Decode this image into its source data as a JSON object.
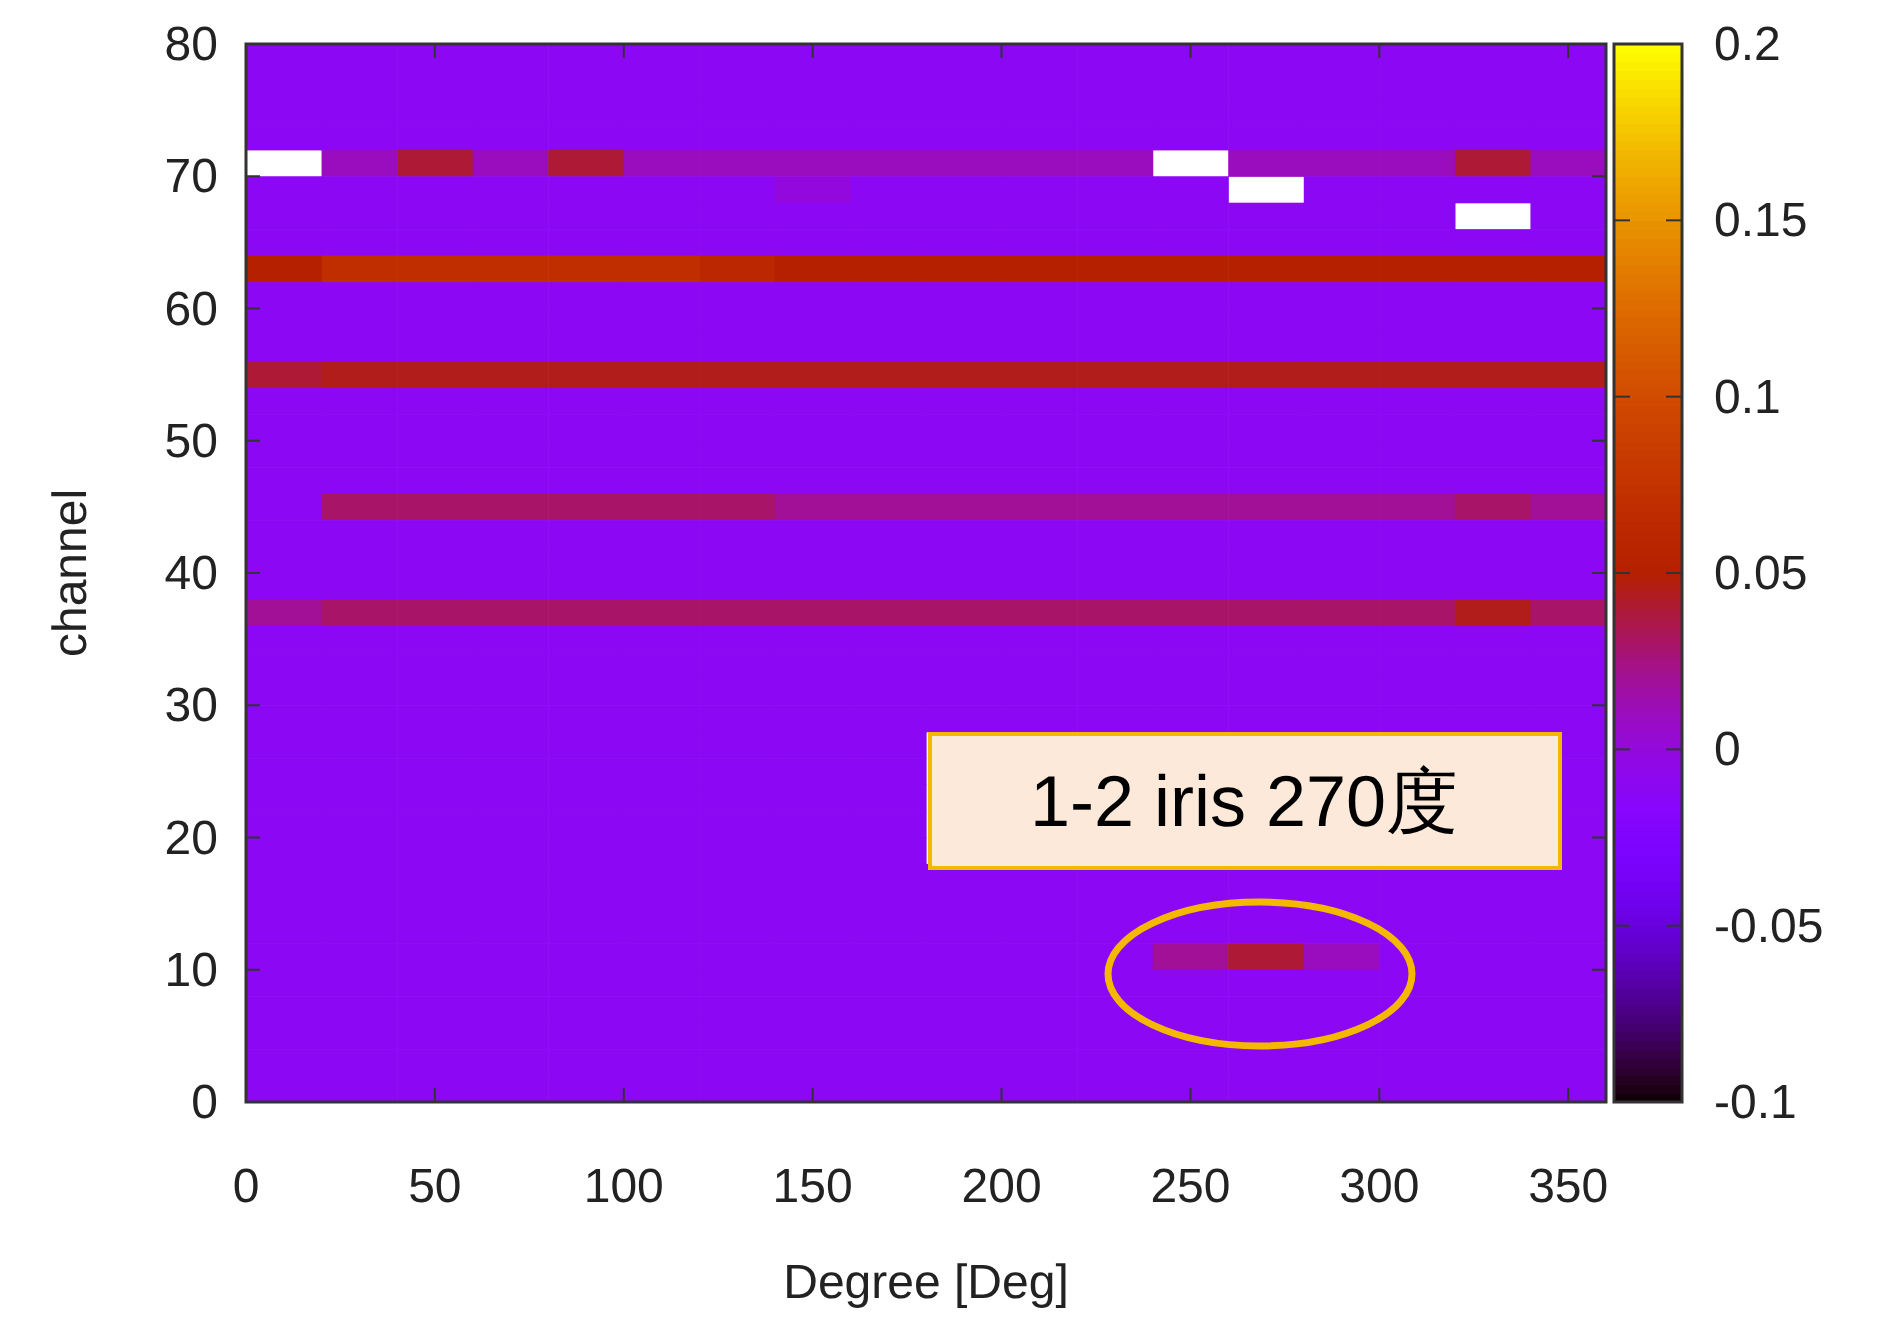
{
  "chart_data": {
    "type": "heatmap",
    "xlabel": "Degree [Deg]",
    "ylabel": "channel",
    "x": [
      10,
      30,
      50,
      70,
      90,
      110,
      130,
      150,
      170,
      190,
      210,
      230,
      250,
      270,
      290,
      310,
      330,
      350
    ],
    "y": [
      79,
      77,
      75,
      73,
      71,
      69,
      67,
      65,
      63,
      61,
      59,
      57,
      55,
      53,
      51,
      49,
      47,
      45,
      43,
      41,
      39,
      37,
      35,
      33,
      31,
      29,
      27,
      25,
      23,
      21,
      19,
      17,
      15,
      13,
      11,
      9,
      7,
      5,
      3,
      1
    ],
    "xlim": [
      0,
      360
    ],
    "xticks": [
      0,
      50,
      100,
      150,
      200,
      250,
      300,
      350
    ],
    "ylim": [
      0,
      80
    ],
    "yticks": [
      0,
      10,
      20,
      30,
      40,
      50,
      60,
      70,
      80
    ],
    "clim": [
      -0.1,
      0.2
    ],
    "cticks": [
      -0.1,
      -0.05,
      0,
      0.05,
      0.1,
      0.15,
      0.2
    ],
    "cells": [
      [
        -0.01,
        -0.01,
        -0.01,
        -0.01,
        -0.01,
        -0.01,
        -0.01,
        -0.01,
        -0.01,
        -0.01,
        -0.01,
        -0.01,
        -0.01,
        -0.01,
        -0.01,
        -0.01,
        -0.01,
        -0.01
      ],
      [
        -0.01,
        -0.01,
        -0.01,
        -0.01,
        -0.01,
        -0.01,
        -0.01,
        -0.01,
        -0.01,
        -0.01,
        -0.01,
        -0.01,
        -0.01,
        -0.01,
        -0.01,
        -0.01,
        -0.01,
        -0.01
      ],
      [
        -0.01,
        -0.01,
        -0.01,
        -0.01,
        -0.01,
        -0.01,
        -0.01,
        -0.01,
        -0.01,
        -0.01,
        -0.01,
        -0.01,
        -0.01,
        -0.01,
        -0.01,
        -0.01,
        -0.01,
        -0.01
      ],
      [
        -0.01,
        -0.01,
        -0.01,
        -0.01,
        -0.01,
        -0.01,
        -0.01,
        -0.01,
        -0.01,
        -0.01,
        -0.01,
        -0.01,
        -0.01,
        -0.01,
        -0.01,
        -0.01,
        -0.01,
        -0.01
      ],
      [
        null,
        0.01,
        0.04,
        0.01,
        0.04,
        0.01,
        0.01,
        0.01,
        0.01,
        0.01,
        0.01,
        0.01,
        null,
        0.01,
        0.01,
        0.01,
        0.04,
        0.01
      ],
      [
        -0.01,
        -0.01,
        -0.01,
        -0.01,
        -0.01,
        -0.01,
        -0.01,
        0.0,
        -0.01,
        -0.01,
        -0.01,
        -0.01,
        -0.01,
        null,
        -0.01,
        -0.01,
        -0.01,
        -0.01
      ],
      [
        -0.01,
        -0.01,
        -0.01,
        -0.01,
        -0.01,
        -0.01,
        -0.01,
        -0.01,
        -0.01,
        -0.01,
        -0.01,
        -0.01,
        -0.01,
        -0.01,
        -0.01,
        -0.01,
        null,
        -0.01
      ],
      [
        -0.01,
        -0.01,
        -0.01,
        -0.01,
        -0.01,
        -0.01,
        -0.01,
        -0.01,
        -0.01,
        -0.01,
        -0.01,
        -0.01,
        -0.01,
        -0.01,
        -0.01,
        -0.01,
        -0.01,
        -0.01
      ],
      [
        0.05,
        0.07,
        0.07,
        0.07,
        0.07,
        0.07,
        0.06,
        0.05,
        0.05,
        0.05,
        0.05,
        0.05,
        0.05,
        0.05,
        0.05,
        0.05,
        0.05,
        0.05
      ],
      [
        -0.01,
        -0.01,
        -0.01,
        -0.01,
        -0.01,
        -0.01,
        -0.01,
        -0.01,
        -0.01,
        -0.01,
        -0.01,
        -0.01,
        -0.01,
        -0.01,
        -0.01,
        -0.01,
        -0.01,
        -0.01
      ],
      [
        -0.01,
        -0.01,
        -0.01,
        -0.01,
        -0.01,
        -0.01,
        -0.01,
        -0.01,
        -0.01,
        -0.01,
        -0.01,
        -0.01,
        -0.01,
        -0.01,
        -0.01,
        -0.01,
        -0.01,
        -0.01
      ],
      [
        -0.01,
        -0.01,
        -0.01,
        -0.01,
        -0.01,
        -0.01,
        -0.01,
        -0.01,
        -0.01,
        -0.01,
        -0.01,
        -0.01,
        -0.01,
        -0.01,
        -0.01,
        -0.01,
        -0.01,
        -0.01
      ],
      [
        0.04,
        0.045,
        0.045,
        0.045,
        0.045,
        0.045,
        0.045,
        0.045,
        0.045,
        0.045,
        0.045,
        0.045,
        0.045,
        0.045,
        0.045,
        0.045,
        0.045,
        0.045
      ],
      [
        -0.01,
        -0.01,
        -0.01,
        -0.01,
        -0.01,
        -0.01,
        -0.01,
        -0.01,
        -0.01,
        -0.01,
        -0.01,
        -0.01,
        -0.01,
        -0.01,
        -0.01,
        -0.01,
        -0.01,
        -0.01
      ],
      [
        -0.01,
        -0.01,
        -0.01,
        -0.01,
        -0.01,
        -0.01,
        -0.01,
        -0.01,
        -0.01,
        -0.01,
        -0.01,
        -0.01,
        -0.01,
        -0.01,
        -0.01,
        -0.01,
        -0.01,
        -0.01
      ],
      [
        -0.01,
        -0.01,
        -0.01,
        -0.01,
        -0.01,
        -0.01,
        -0.01,
        -0.01,
        -0.01,
        -0.01,
        -0.01,
        -0.01,
        -0.01,
        -0.01,
        -0.01,
        -0.01,
        -0.01,
        -0.01
      ],
      [
        -0.01,
        -0.01,
        -0.01,
        -0.01,
        -0.01,
        -0.01,
        -0.01,
        -0.01,
        -0.01,
        -0.01,
        -0.01,
        -0.01,
        -0.01,
        -0.01,
        -0.01,
        -0.01,
        -0.01,
        -0.01
      ],
      [
        -0.01,
        0.03,
        0.03,
        0.03,
        0.03,
        0.03,
        0.03,
        0.02,
        0.02,
        0.02,
        0.02,
        0.02,
        0.02,
        0.02,
        0.02,
        0.02,
        0.03,
        0.02
      ],
      [
        -0.01,
        -0.01,
        -0.01,
        -0.01,
        -0.01,
        -0.01,
        -0.01,
        -0.01,
        -0.01,
        -0.01,
        -0.01,
        -0.01,
        -0.01,
        -0.01,
        -0.01,
        -0.01,
        -0.01,
        -0.01
      ],
      [
        -0.01,
        -0.01,
        -0.01,
        -0.01,
        -0.01,
        -0.01,
        -0.01,
        -0.01,
        -0.01,
        -0.01,
        -0.01,
        -0.01,
        -0.01,
        -0.01,
        -0.01,
        -0.01,
        -0.01,
        -0.01
      ],
      [
        -0.01,
        -0.01,
        -0.01,
        -0.01,
        -0.01,
        -0.01,
        -0.01,
        -0.01,
        -0.01,
        -0.01,
        -0.01,
        -0.01,
        -0.01,
        -0.01,
        -0.01,
        -0.01,
        -0.01,
        -0.01
      ],
      [
        0.02,
        0.03,
        0.03,
        0.03,
        0.03,
        0.03,
        0.03,
        0.03,
        0.03,
        0.03,
        0.03,
        0.03,
        0.03,
        0.03,
        0.03,
        0.03,
        0.045,
        0.03
      ],
      [
        -0.01,
        -0.01,
        -0.01,
        -0.01,
        -0.01,
        -0.01,
        -0.01,
        -0.01,
        -0.01,
        -0.01,
        -0.01,
        -0.01,
        -0.01,
        -0.01,
        -0.01,
        -0.01,
        -0.01,
        -0.01
      ],
      [
        -0.01,
        -0.01,
        -0.01,
        -0.01,
        -0.01,
        -0.01,
        -0.01,
        -0.01,
        -0.01,
        -0.01,
        -0.01,
        -0.01,
        -0.01,
        -0.01,
        -0.01,
        -0.01,
        -0.01,
        -0.01
      ],
      [
        -0.01,
        -0.01,
        -0.01,
        -0.01,
        -0.01,
        -0.01,
        -0.01,
        -0.01,
        -0.01,
        -0.01,
        -0.01,
        -0.01,
        -0.01,
        -0.01,
        -0.01,
        -0.01,
        -0.01,
        -0.01
      ],
      [
        -0.01,
        -0.01,
        -0.01,
        -0.01,
        -0.01,
        -0.01,
        -0.01,
        -0.01,
        -0.01,
        -0.01,
        -0.01,
        -0.01,
        -0.01,
        -0.01,
        -0.01,
        -0.01,
        -0.01,
        -0.01
      ],
      [
        -0.01,
        -0.01,
        -0.01,
        -0.01,
        -0.01,
        -0.01,
        -0.01,
        -0.01,
        -0.01,
        null,
        null,
        null,
        null,
        null,
        null,
        null,
        null,
        -0.01
      ],
      [
        -0.01,
        -0.01,
        -0.01,
        -0.01,
        -0.01,
        -0.01,
        -0.01,
        -0.01,
        -0.01,
        null,
        null,
        null,
        null,
        null,
        null,
        null,
        null,
        -0.01
      ],
      [
        -0.01,
        -0.01,
        -0.01,
        -0.01,
        -0.01,
        -0.01,
        -0.01,
        -0.01,
        -0.01,
        null,
        null,
        null,
        null,
        null,
        null,
        null,
        null,
        -0.01
      ],
      [
        -0.01,
        -0.01,
        -0.01,
        -0.01,
        -0.01,
        -0.01,
        -0.01,
        -0.01,
        -0.01,
        null,
        null,
        null,
        null,
        null,
        null,
        null,
        null,
        -0.01
      ],
      [
        -0.01,
        -0.01,
        -0.01,
        -0.01,
        -0.01,
        -0.01,
        -0.01,
        -0.01,
        -0.01,
        null,
        null,
        null,
        null,
        null,
        null,
        null,
        null,
        -0.01
      ],
      [
        -0.01,
        -0.01,
        -0.01,
        -0.01,
        -0.01,
        -0.01,
        -0.01,
        -0.01,
        -0.01,
        -0.01,
        -0.01,
        -0.01,
        -0.01,
        -0.01,
        -0.01,
        -0.01,
        -0.01,
        -0.01
      ],
      [
        -0.01,
        -0.01,
        -0.01,
        -0.01,
        -0.01,
        -0.01,
        -0.01,
        -0.01,
        -0.01,
        -0.01,
        -0.01,
        -0.01,
        -0.01,
        -0.01,
        -0.01,
        -0.01,
        -0.01,
        -0.01
      ],
      [
        -0.01,
        -0.01,
        -0.01,
        -0.01,
        -0.01,
        -0.01,
        -0.01,
        -0.01,
        -0.01,
        -0.01,
        -0.01,
        -0.01,
        -0.01,
        -0.01,
        -0.01,
        -0.01,
        -0.01,
        -0.01
      ],
      [
        -0.01,
        -0.01,
        -0.01,
        -0.01,
        -0.01,
        -0.01,
        -0.01,
        -0.01,
        -0.01,
        -0.01,
        -0.01,
        -0.01,
        0.02,
        0.04,
        0.01,
        -0.01,
        -0.01,
        -0.01
      ],
      [
        -0.01,
        -0.01,
        -0.01,
        -0.01,
        -0.01,
        -0.01,
        -0.01,
        -0.01,
        -0.01,
        -0.01,
        -0.01,
        -0.01,
        -0.01,
        -0.01,
        -0.01,
        -0.01,
        -0.01,
        -0.01
      ],
      [
        -0.01,
        -0.01,
        -0.01,
        -0.01,
        -0.01,
        -0.01,
        -0.01,
        -0.01,
        -0.01,
        -0.01,
        -0.01,
        -0.01,
        -0.01,
        -0.01,
        -0.01,
        -0.01,
        -0.01,
        -0.01
      ],
      [
        -0.01,
        -0.01,
        -0.01,
        -0.01,
        -0.01,
        -0.01,
        -0.01,
        -0.01,
        -0.01,
        -0.01,
        -0.01,
        -0.01,
        -0.01,
        -0.01,
        -0.01,
        -0.01,
        -0.01,
        -0.01
      ],
      [
        -0.01,
        -0.01,
        -0.01,
        -0.01,
        -0.01,
        -0.01,
        -0.01,
        -0.01,
        -0.01,
        -0.01,
        -0.01,
        -0.01,
        -0.01,
        -0.01,
        -0.01,
        -0.01,
        -0.01,
        -0.01
      ],
      [
        -0.01,
        -0.01,
        -0.01,
        -0.01,
        -0.01,
        -0.01,
        -0.01,
        -0.01,
        -0.01,
        -0.01,
        -0.01,
        -0.01,
        -0.01,
        -0.01,
        -0.01,
        -0.01,
        -0.01,
        -0.01
      ]
    ],
    "annotations": [
      "1-2 iris 270度"
    ]
  }
}
